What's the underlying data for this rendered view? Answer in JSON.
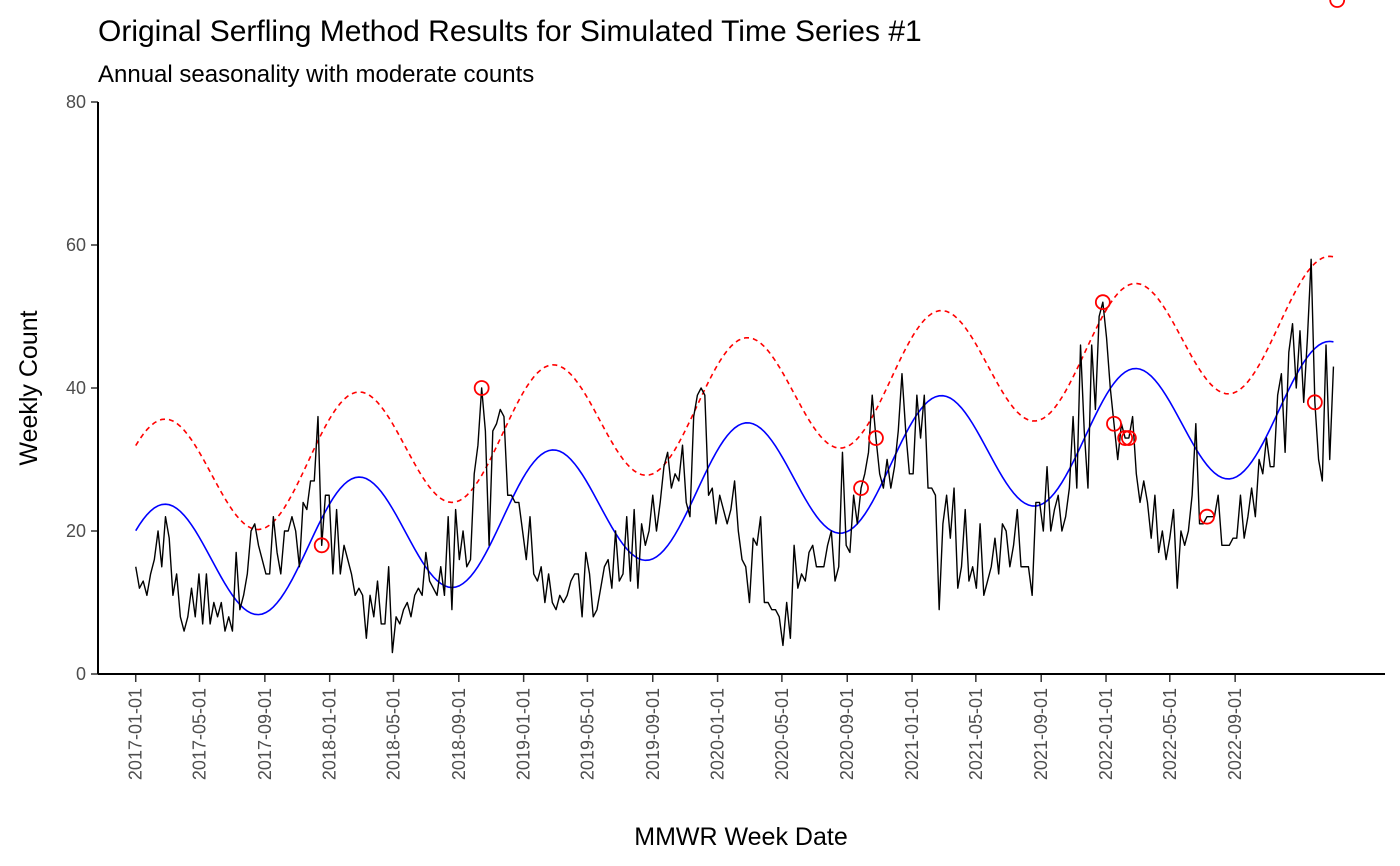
{
  "chart_data": {
    "type": "line",
    "title": "Original Serfling Method Results for Simulated Time Series #1",
    "subtitle": "Annual seasonality with moderate counts",
    "xlabel": "MMWR Week Date",
    "ylabel": "Weekly Count",
    "xlim": [
      "2016-10-22",
      "2023-06-10"
    ],
    "ylim": [
      0,
      80
    ],
    "y_ticks": [
      0,
      20,
      40,
      60,
      80
    ],
    "x_ticks": [
      "2017-01-01",
      "2017-05-01",
      "2017-09-01",
      "2018-01-01",
      "2018-05-01",
      "2018-09-01",
      "2019-01-01",
      "2019-05-01",
      "2019-09-01",
      "2020-01-01",
      "2020-05-01",
      "2020-09-01",
      "2021-01-01",
      "2021-05-01",
      "2021-09-01",
      "2022-01-01",
      "2022-05-01",
      "2022-09-01"
    ],
    "grid": false,
    "legend": "none",
    "series_meta": {
      "observed": {
        "start": "2017-01-01",
        "week_days": 7,
        "color": "#000000"
      },
      "fitted": {
        "color": "#0000ff"
      },
      "threshold": {
        "color": "#ff0000",
        "dashed": true
      },
      "alerts": {
        "color": "#ff0000"
      }
    },
    "observed": [
      15,
      12,
      13,
      11,
      14,
      16,
      20,
      15,
      22,
      19,
      11,
      14,
      8,
      6,
      8,
      12,
      8,
      14,
      7,
      14,
      7,
      10,
      8,
      10,
      6,
      8,
      6,
      17,
      9,
      11,
      14,
      20,
      21,
      18,
      16,
      14,
      14,
      22,
      17,
      14,
      20,
      20,
      22,
      20,
      15,
      24,
      23,
      27,
      27,
      36,
      18,
      25,
      25,
      14,
      23,
      14,
      18,
      16,
      14,
      11,
      12,
      11,
      5,
      11,
      8,
      13,
      7,
      7,
      15,
      3,
      8,
      7,
      9,
      10,
      8,
      11,
      12,
      11,
      17,
      13,
      12,
      11,
      15,
      11,
      22,
      9,
      23,
      16,
      20,
      15,
      16,
      28,
      32,
      40,
      34,
      18,
      34,
      35,
      37,
      36,
      25,
      25,
      24,
      24,
      20,
      16,
      22,
      14,
      13,
      15,
      10,
      14,
      10,
      9,
      11,
      10,
      11,
      13,
      14,
      14,
      8,
      17,
      14,
      8,
      9,
      12,
      15,
      16,
      12,
      20,
      13,
      14,
      22,
      13,
      23,
      12,
      21,
      18,
      20,
      25,
      20,
      24,
      29,
      31,
      26,
      28,
      27,
      32,
      24,
      22,
      36,
      39,
      40,
      39,
      25,
      26,
      21,
      25,
      23,
      21,
      23,
      27,
      20,
      16,
      15,
      10,
      19,
      18,
      22,
      10,
      10,
      9,
      9,
      8,
      4,
      10,
      5,
      18,
      12,
      14,
      13,
      17,
      18,
      15,
      15,
      15,
      18,
      20,
      13,
      15,
      31,
      18,
      17,
      25,
      21,
      26,
      28,
      31,
      39,
      33,
      28,
      26,
      30,
      26,
      29,
      34,
      42,
      34,
      28,
      28,
      39,
      33,
      39,
      26,
      26,
      25,
      9,
      21,
      25,
      19,
      26,
      12,
      15,
      23,
      13,
      15,
      12,
      21,
      11,
      13,
      15,
      19,
      14,
      21,
      20,
      15,
      18,
      23,
      15,
      15,
      15,
      11,
      24,
      24,
      20,
      29,
      20,
      23,
      25,
      20,
      22,
      26,
      36,
      26,
      46,
      34,
      26,
      46,
      37,
      50,
      52,
      47,
      40,
      35,
      30,
      35,
      33,
      33,
      36,
      28,
      24,
      27,
      24,
      19,
      25,
      17,
      20,
      16,
      19,
      23,
      12,
      20,
      18,
      20,
      25,
      35,
      21,
      21,
      22,
      22,
      22,
      25,
      18,
      18,
      18,
      19,
      19,
      25,
      19,
      22,
      26,
      22,
      30,
      28,
      33,
      29,
      29,
      39,
      42,
      31,
      45,
      49,
      40,
      48,
      38,
      47,
      58,
      38,
      30,
      27,
      46,
      30,
      43
    ],
    "alert_weeks": [
      50,
      93,
      195,
      199,
      260,
      263,
      266,
      267,
      288,
      317,
      323
    ],
    "fitted": {
      "formula": "a + b*t + c*cos(2*pi*t/52.18) + s*sin(2*pi*t/52.18), t = week index from 2017-01-01",
      "a": 14.545,
      "b": 0.07273,
      "c": 5.5,
      "s": 6.68
    },
    "threshold_offset": 11.9
  }
}
